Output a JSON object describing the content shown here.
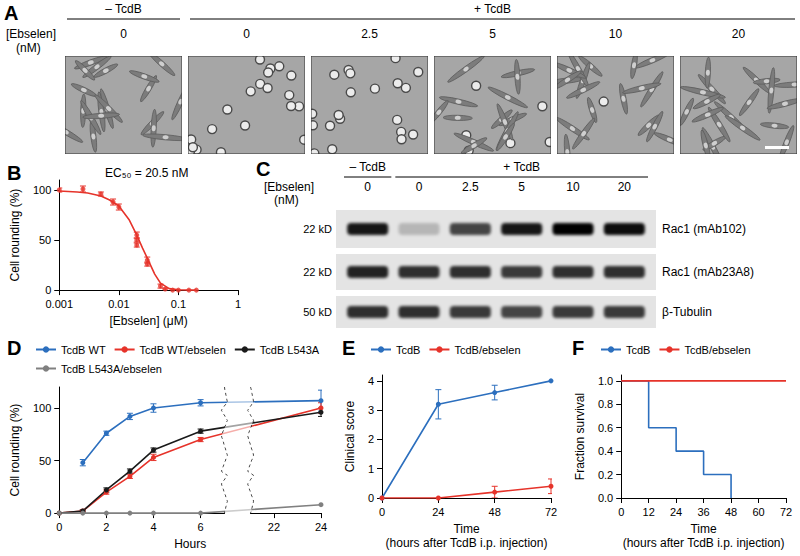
{
  "chart_data": [
    {
      "type": "scatter",
      "title": "B",
      "annotation": "EC₅₀ = 20.5 nM",
      "x_label": "[Ebselen] (μM)",
      "y_label": "Cell rounding (%)",
      "log": "x",
      "grid": false,
      "xlim": [
        0.001,
        1
      ],
      "xticks": [
        0.001,
        0.01,
        0.1,
        1
      ],
      "ylim": [
        0,
        110
      ],
      "yticks": [
        0,
        50,
        100
      ],
      "series": [
        {
          "type": "scatter",
          "color": "#e6332a",
          "marker": "circle",
          "x": [
            0.001,
            0.0025,
            0.005,
            0.008,
            0.01,
            0.02,
            0.02,
            0.02,
            0.03,
            0.03,
            0.05,
            0.06,
            0.08,
            0.1,
            0.15,
            0.2
          ],
          "values": [
            100,
            101,
            96,
            88,
            83,
            55,
            50,
            45,
            30,
            26,
            4,
            1,
            0,
            0,
            0,
            0
          ],
          "errors": [
            2,
            3,
            2,
            3,
            3,
            3,
            2,
            2,
            3,
            2,
            2,
            1,
            0,
            0,
            0,
            0
          ]
        },
        {
          "type": "line",
          "color": "#e6332a",
          "marker": "none",
          "x": [
            0.001,
            0.002,
            0.003,
            0.005,
            0.007,
            0.01,
            0.015,
            0.02,
            0.025,
            0.03,
            0.04,
            0.05,
            0.07,
            0.1,
            0.2
          ],
          "values": [
            99,
            98,
            97,
            94,
            90,
            84,
            70,
            55,
            42,
            32,
            16,
            7,
            1.5,
            0.3,
            0
          ]
        }
      ]
    },
    {
      "type": "line",
      "title": "D",
      "x_label": "Hours",
      "y_label": "Cell rounding (%)",
      "grid": false,
      "legend": "top",
      "marker": "circle",
      "xlim": [
        0,
        24
      ],
      "xticks": [
        0,
        2,
        4,
        6,
        22,
        24
      ],
      "xbreak": [
        7,
        21
      ],
      "ylim": [
        0,
        120
      ],
      "yticks": [
        0,
        50,
        100
      ],
      "series": [
        {
          "name": "TcdB WT",
          "color": "#2c6fbe",
          "x": [
            1,
            2,
            3,
            4,
            6,
            24
          ],
          "values": [
            48,
            76,
            92,
            100,
            105,
            107
          ],
          "errors": [
            3,
            2,
            3,
            4,
            3,
            10
          ]
        },
        {
          "name": "TcdB WT/ebselen",
          "color": "#e6332a",
          "x": [
            0,
            1,
            2,
            3,
            4,
            6,
            24
          ],
          "values": [
            0,
            2,
            20,
            35,
            53,
            70,
            100
          ],
          "errors": [
            0,
            1,
            2,
            2,
            3,
            2,
            5
          ]
        },
        {
          "name": "TcdB L543A",
          "color": "#1a1a1a",
          "x": [
            0,
            1,
            2,
            3,
            4,
            6,
            24
          ],
          "values": [
            0,
            2,
            22,
            40,
            60,
            78,
            96
          ],
          "errors": [
            0,
            1,
            2,
            2,
            2,
            2,
            4
          ]
        },
        {
          "name": "TcdB L543A/ebselen",
          "color": "#808080",
          "x": [
            0,
            1,
            2,
            3,
            4,
            6,
            24
          ],
          "values": [
            0,
            0,
            0,
            0,
            0,
            0,
            8
          ],
          "errors": [
            0,
            0,
            0,
            0,
            0,
            0,
            0
          ]
        }
      ]
    },
    {
      "type": "line",
      "title": "E",
      "x_label": "Time\n(hours after TcdB i.p. injection)",
      "y_label": "Clinical score",
      "grid": false,
      "legend": "top",
      "marker": "circle",
      "xlim": [
        0,
        72
      ],
      "xticks": [
        0,
        24,
        48,
        72
      ],
      "ylim": [
        0,
        4.2
      ],
      "yticks": [
        0,
        1,
        2,
        3,
        4
      ],
      "series": [
        {
          "name": "TcdB",
          "color": "#2c6fbe",
          "x": [
            0,
            24,
            48,
            72
          ],
          "values": [
            0,
            3.2,
            3.6,
            4.0
          ],
          "errors": [
            0,
            0.5,
            0.25,
            0
          ]
        },
        {
          "name": "TcdB/ebselen",
          "color": "#e6332a",
          "x": [
            0,
            24,
            48,
            72
          ],
          "values": [
            0,
            0,
            0.2,
            0.4
          ],
          "errors": [
            0,
            0,
            0.2,
            0.25
          ]
        }
      ]
    },
    {
      "type": "line",
      "title": "F",
      "x_label": "Time\n(hours after TcdB i.p. injection)",
      "y_label": "Fraction survival",
      "grid": false,
      "legend": "top",
      "marker": "none",
      "line_style": "step",
      "xlim": [
        0,
        72
      ],
      "xticks": [
        0,
        12,
        24,
        36,
        48,
        60,
        72
      ],
      "ylim": [
        0,
        1.05
      ],
      "yticks": [
        {
          "value": 0,
          "label": "0.0"
        },
        0.2,
        0.4,
        0.6,
        0.8,
        {
          "value": 1,
          "label": "1.0"
        }
      ],
      "series": [
        {
          "name": "TcdB",
          "color": "#2c6fbe",
          "x": [
            0,
            12,
            24,
            36,
            48
          ],
          "values": [
            1,
            0.6,
            0.4,
            0.2,
            0
          ]
        },
        {
          "name": "TcdB/ebselen",
          "color": "#e6332a",
          "x": [
            0,
            12,
            24,
            36,
            48,
            60,
            72
          ],
          "values": [
            1,
            1,
            1,
            1,
            1,
            1,
            1
          ]
        }
      ]
    }
  ],
  "panel_A": {
    "title": "A",
    "row_label": "[Ebselen]",
    "unit": "(nM)",
    "groups": [
      {
        "label": "– TcdB",
        "ebselen": [
          0
        ]
      },
      {
        "label": "+ TcdB",
        "ebselen": [
          0,
          2.5,
          5,
          10,
          20
        ]
      }
    ],
    "cell_rounding": [
      0,
      100,
      100,
      30,
      5,
      0
    ]
  },
  "panel_C": {
    "title": "C",
    "row_label": "[Ebselen]",
    "unit": "(nM)",
    "groups": [
      {
        "label": "– TcdB",
        "ebselen": [
          0
        ]
      },
      {
        "label": "+ TcdB",
        "ebselen": [
          0,
          2.5,
          5,
          10,
          20
        ]
      }
    ],
    "blots": [
      {
        "label": "Rac1 (mAb102)",
        "mass": "22 kD",
        "intensity": [
          0.9,
          0.2,
          0.7,
          0.9,
          1,
          0.95
        ]
      },
      {
        "label": "Rac1 (mAb23A8)",
        "mass": "22 kD",
        "intensity": [
          0.85,
          0.8,
          0.8,
          0.75,
          0.8,
          0.8
        ]
      },
      {
        "label": "β-Tubulin",
        "mass": "50 kD",
        "intensity": [
          0.8,
          0.8,
          0.75,
          0.7,
          0.75,
          0.75
        ]
      }
    ]
  }
}
